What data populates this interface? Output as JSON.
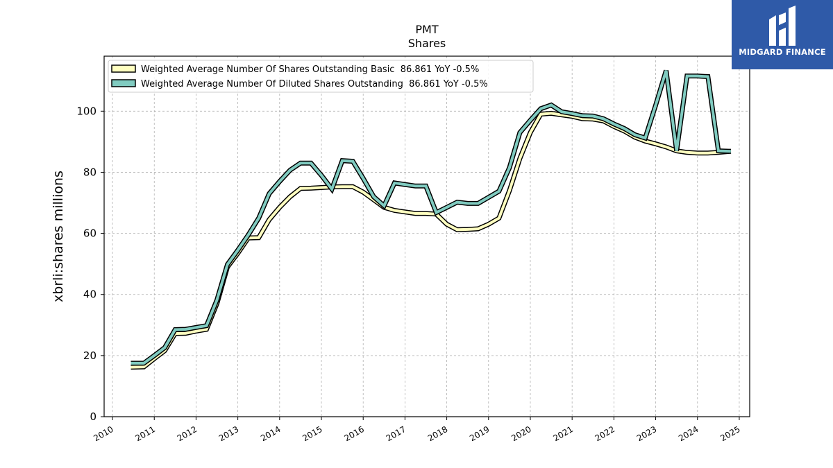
{
  "chart_data": {
    "type": "line",
    "title": "PMT",
    "subtitle": "Shares",
    "ylabel": "xbrli:shares millions",
    "xlabel": "",
    "xlim": [
      2009.8,
      2025.25
    ],
    "ylim": [
      0,
      118
    ],
    "x_ticks": [
      2010,
      2011,
      2012,
      2013,
      2014,
      2015,
      2016,
      2017,
      2018,
      2019,
      2020,
      2021,
      2022,
      2023,
      2024,
      2025
    ],
    "y_ticks": [
      0,
      20,
      40,
      60,
      80,
      100
    ],
    "grid": true,
    "legend_position": "top-left",
    "series": [
      {
        "name": "Weighted Average Number Of Shares Outstanding Basic  86.861 YoY -0.5%",
        "color": "#ffffc0",
        "x": [
          2010.44,
          2010.75,
          2011.0,
          2011.25,
          2011.5,
          2011.75,
          2012.0,
          2012.25,
          2012.5,
          2012.75,
          2013.0,
          2013.25,
          2013.5,
          2013.75,
          2014.0,
          2014.25,
          2014.5,
          2014.75,
          2015.0,
          2015.25,
          2015.5,
          2015.75,
          2016.0,
          2016.25,
          2016.5,
          2016.75,
          2017.0,
          2017.25,
          2017.5,
          2017.75,
          2018.0,
          2018.25,
          2018.5,
          2018.75,
          2019.0,
          2019.25,
          2019.5,
          2019.75,
          2020.0,
          2020.25,
          2020.5,
          2020.75,
          2021.0,
          2021.25,
          2021.5,
          2021.75,
          2022.0,
          2022.25,
          2022.5,
          2022.75,
          2023.0,
          2023.25,
          2023.5,
          2023.75,
          2024.0,
          2024.25,
          2024.5,
          2024.8
        ],
        "values": [
          16.2,
          16.3,
          19.0,
          21.6,
          27.2,
          27.3,
          28.0,
          28.6,
          37.0,
          49.0,
          53.5,
          58.5,
          58.6,
          64.5,
          68.5,
          72.0,
          74.7,
          74.8,
          75.0,
          75.2,
          75.3,
          75.3,
          73.5,
          71.0,
          68.5,
          67.5,
          67.0,
          66.5,
          66.5,
          66.3,
          63.0,
          61.2,
          61.3,
          61.5,
          63.0,
          65.0,
          74.0,
          84.5,
          93.0,
          99.0,
          99.3,
          98.8,
          98.3,
          97.5,
          97.4,
          96.8,
          95.0,
          93.5,
          91.5,
          90.2,
          89.3,
          88.3,
          87.0,
          86.5,
          86.3,
          86.3,
          86.5,
          86.861
        ]
      },
      {
        "name": "Weighted Average Number Of Diluted Shares Outstanding  86.861 YoY -0.5%",
        "color": "#80cbc0",
        "x": [
          2010.44,
          2010.75,
          2011.0,
          2011.25,
          2011.5,
          2011.75,
          2012.0,
          2012.25,
          2012.5,
          2012.75,
          2013.0,
          2013.25,
          2013.5,
          2013.75,
          2014.0,
          2014.25,
          2014.5,
          2014.75,
          2015.0,
          2015.25,
          2015.5,
          2015.75,
          2016.0,
          2016.25,
          2016.5,
          2016.75,
          2017.0,
          2017.25,
          2017.5,
          2017.75,
          2018.0,
          2018.25,
          2018.5,
          2018.75,
          2019.0,
          2019.25,
          2019.5,
          2019.75,
          2020.0,
          2020.25,
          2020.5,
          2020.75,
          2021.0,
          2021.25,
          2021.5,
          2021.75,
          2022.0,
          2022.25,
          2022.5,
          2022.75,
          2023.0,
          2023.25,
          2023.5,
          2023.75,
          2024.0,
          2024.25,
          2024.5,
          2024.8
        ],
        "values": [
          17.5,
          17.5,
          20.0,
          22.6,
          28.5,
          28.6,
          29.2,
          29.8,
          38.2,
          49.8,
          54.5,
          59.5,
          65.0,
          73.0,
          77.0,
          80.7,
          83.0,
          83.0,
          79.0,
          74.5,
          83.8,
          83.6,
          78.0,
          72.0,
          69.0,
          76.5,
          76.0,
          75.5,
          75.5,
          66.8,
          68.5,
          70.2,
          69.8,
          69.8,
          71.8,
          73.8,
          81.5,
          93.0,
          97.0,
          100.8,
          102.0,
          99.8,
          99.2,
          98.5,
          98.4,
          97.5,
          95.8,
          94.3,
          92.3,
          91.2,
          102.0,
          113.3,
          87.0,
          111.5,
          111.5,
          111.3,
          87.0,
          86.861
        ]
      }
    ]
  },
  "logo": {
    "text": "MIDGARD FINANCE",
    "color": "#2f5aa8"
  }
}
